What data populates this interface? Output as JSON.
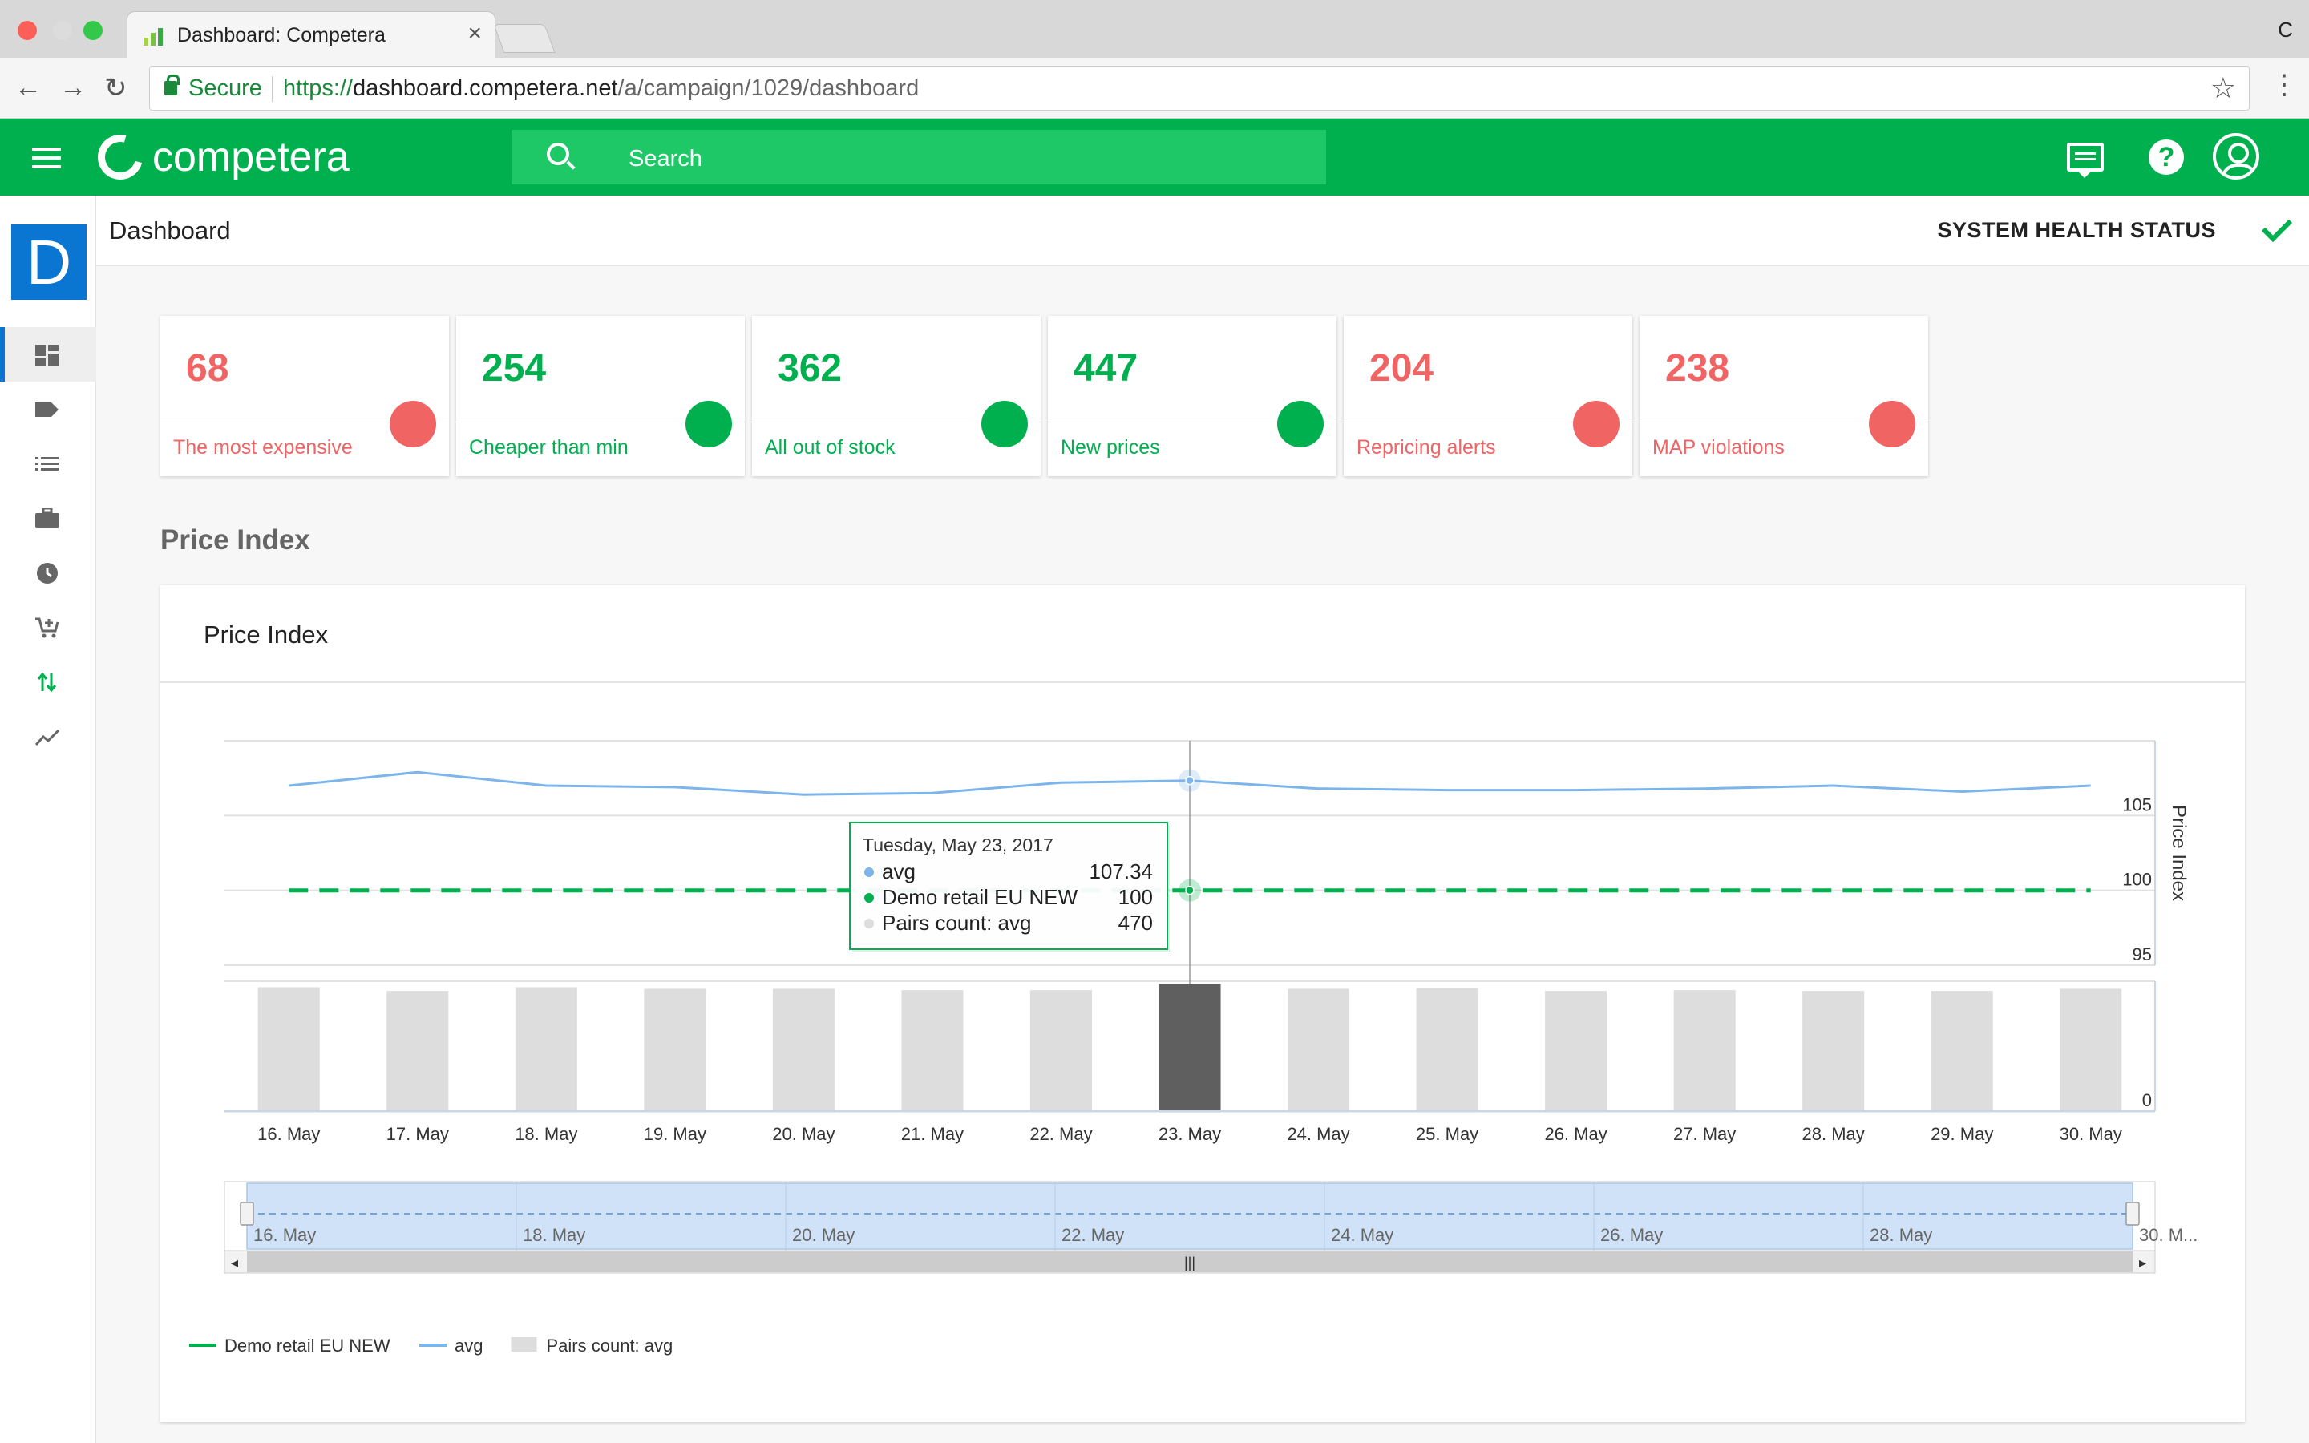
{
  "browser": {
    "tab_title": "Dashboard: Competera",
    "tab_close": "×",
    "right_glyph": "C",
    "secure_label": "Secure",
    "url_scheme": "https://",
    "url_host": "dashboard.competera.net",
    "url_path": "/a/campaign/1029/dashboard",
    "back_icon": "←",
    "forward_icon": "→",
    "reload_icon": "↻",
    "star_icon": "☆",
    "menu_icon": "⋮"
  },
  "app": {
    "logo_text": "competera",
    "search_placeholder": "Search",
    "help_glyph": "?",
    "accent": "#00b04f"
  },
  "sidebar": {
    "logo_letter": "D",
    "items": [
      {
        "icon": "dashboard-icon",
        "active": true
      },
      {
        "icon": "tag-icon"
      },
      {
        "icon": "list-icon"
      },
      {
        "icon": "briefcase-icon"
      },
      {
        "icon": "clock-icon"
      },
      {
        "icon": "add-cart-icon"
      },
      {
        "icon": "swap-arrows-icon"
      },
      {
        "icon": "trend-line-icon"
      }
    ]
  },
  "page": {
    "title": "Dashboard",
    "health_label": "SYSTEM HEALTH STATUS"
  },
  "kpis": [
    {
      "value": "68",
      "label": "The most expensive",
      "status": "red"
    },
    {
      "value": "254",
      "label": "Cheaper than min",
      "status": "green"
    },
    {
      "value": "362",
      "label": "All out of stock",
      "status": "green"
    },
    {
      "value": "447",
      "label": "New prices",
      "status": "green"
    },
    {
      "value": "204",
      "label": "Repricing alerts",
      "status": "red"
    },
    {
      "value": "238",
      "label": "MAP violations",
      "status": "red"
    }
  ],
  "section": {
    "title": "Price Index",
    "panel_title": "Price Index"
  },
  "chart_data": {
    "type": "line",
    "categories": [
      "16. May",
      "17. May",
      "18. May",
      "19. May",
      "20. May",
      "21. May",
      "22. May",
      "23. May",
      "24. May",
      "25. May",
      "26. May",
      "27. May",
      "28. May",
      "29. May",
      "30. May"
    ],
    "series": [
      {
        "name": "avg",
        "type": "line",
        "color": "#7cb5ec",
        "values": [
          107.0,
          107.9,
          107.0,
          106.9,
          106.4,
          106.5,
          107.2,
          107.34,
          106.8,
          106.7,
          106.7,
          106.8,
          107.0,
          106.6,
          107.0
        ]
      },
      {
        "name": "Demo retail EU NEW",
        "type": "line",
        "dashed": true,
        "color": "#00b04f",
        "values": [
          100,
          100,
          100,
          100,
          100,
          100,
          100,
          100,
          100,
          100,
          100,
          100,
          100,
          100,
          100
        ]
      },
      {
        "name": "Pairs count: avg",
        "type": "bar",
        "color": "#dddddd",
        "highlight_color": "#5f5f5f",
        "values": [
          458,
          444,
          458,
          452,
          452,
          447,
          447,
          470,
          452,
          455,
          444,
          447,
          444,
          444,
          452
        ]
      }
    ],
    "y_axis_title": "Price Index",
    "y_ticks": [
      95,
      100,
      105
    ],
    "ylim": [
      95,
      110
    ],
    "bar_y_ticks": [
      0
    ],
    "bar_ylim": [
      0,
      480
    ],
    "highlight_index": 7,
    "tooltip": {
      "date": "Tuesday, May 23, 2017",
      "rows": [
        {
          "name": "avg",
          "value": "107.34",
          "color": "#7cb5ec"
        },
        {
          "name": "Demo retail EU NEW",
          "value": "100",
          "color": "#00b04f"
        },
        {
          "name": "Pairs count: avg",
          "value": "470",
          "color": "#dddddd"
        }
      ]
    },
    "navigator_labels": [
      "16. May",
      "18. May",
      "20. May",
      "22. May",
      "24. May",
      "26. May",
      "28. May",
      "30. M..."
    ],
    "navigator_handle": "|||",
    "legend": [
      {
        "name": "Demo retail EU NEW",
        "color": "#00b04f",
        "kind": "line"
      },
      {
        "name": "avg",
        "color": "#7cb5ec",
        "kind": "line"
      },
      {
        "name": "Pairs count: avg",
        "color": "#dddddd",
        "kind": "box"
      }
    ],
    "legend_position": "bottom-left",
    "grid": true
  }
}
